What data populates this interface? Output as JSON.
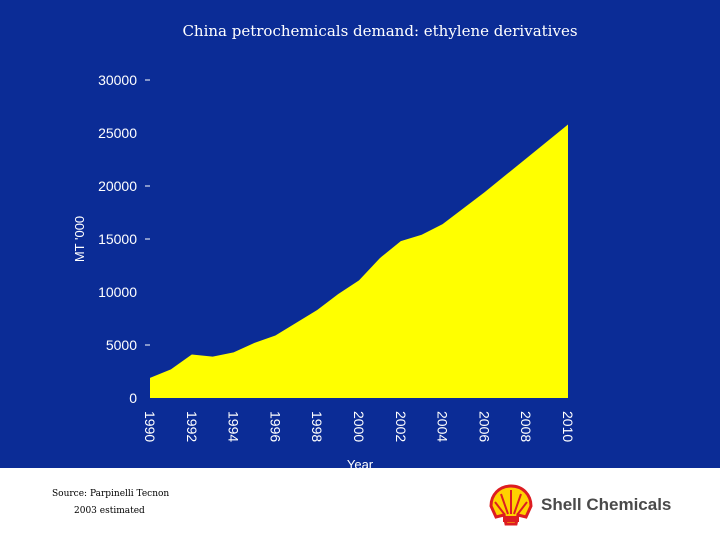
{
  "chart_data": {
    "type": "area",
    "title": "China petrochemicals demand: ethylene derivatives",
    "xlabel": "Year",
    "ylabel": "MT '000",
    "xlim": [
      1990,
      2010
    ],
    "ylim": [
      0,
      30000
    ],
    "x_ticks": [
      "1990",
      "1992",
      "1994",
      "1996",
      "1998",
      "2000",
      "2002",
      "2004",
      "2006",
      "2008",
      "2010"
    ],
    "y_ticks": [
      "30000",
      "25000",
      "20000",
      "15000",
      "10000",
      "5000",
      "0"
    ],
    "x": [
      1990,
      1991,
      1992,
      1993,
      1994,
      1995,
      1996,
      1997,
      1998,
      1999,
      2000,
      2001,
      2002,
      2003,
      2004,
      2005,
      2006,
      2007,
      2008,
      2009,
      2010
    ],
    "values": [
      1900,
      2700,
      4100,
      3900,
      4300,
      5200,
      5900,
      7100,
      8300,
      9800,
      11100,
      13200,
      14800,
      15400,
      16400,
      17900,
      19400,
      21000,
      22600,
      24200,
      25800
    ],
    "fill_color": "#ffff00",
    "background_color": "#0b2c96"
  },
  "footer": {
    "source": "Source: Parpinelli Tecnon",
    "estimate_note": "2003 estimated",
    "brand": "Shell Chemicals"
  }
}
